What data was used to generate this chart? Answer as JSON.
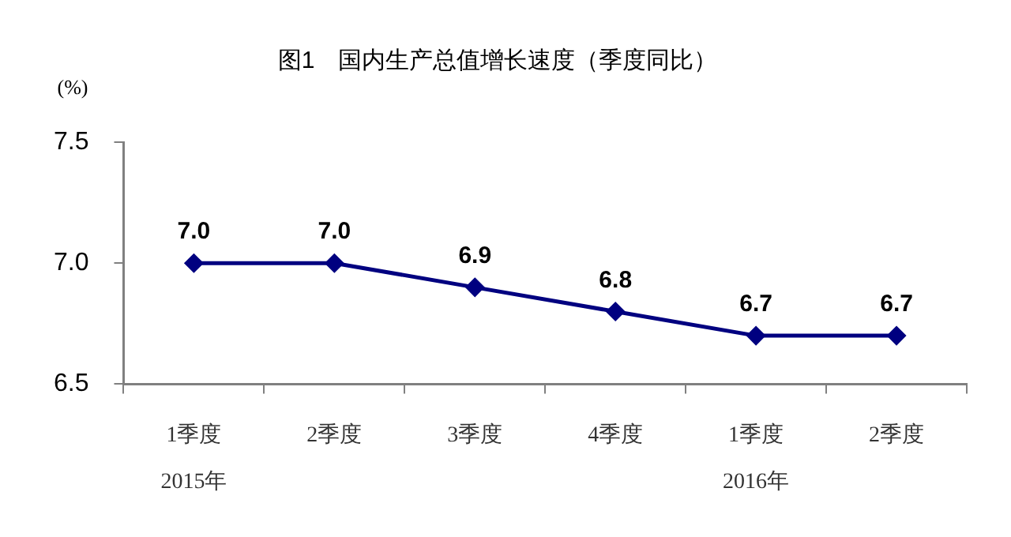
{
  "chart_data": {
    "type": "line",
    "title": "图1　国内生产总值增长速度（季度同比）",
    "ylabel": "(%)",
    "categories": [
      "1季度\n2015年",
      "2季度",
      "3季度",
      "4季度",
      "1季度\n2016年",
      "2季度"
    ],
    "series": [
      {
        "color": "#000080",
        "values": [
          7.0,
          7.0,
          6.9,
          6.8,
          6.7,
          6.7
        ]
      }
    ],
    "ylim": [
      6.5,
      7.5
    ],
    "yticks": [
      {
        "value": 6.5,
        "label": "6.5"
      },
      {
        "value": 7.0,
        "label": "7.0"
      },
      {
        "value": 7.5,
        "label": "7.5"
      }
    ],
    "grid": false,
    "legend": false,
    "marker": "diamond",
    "line_style": "solid",
    "value_labels": [
      "7.0",
      "7.0",
      "6.9",
      "6.8",
      "6.7",
      "6.7"
    ]
  }
}
